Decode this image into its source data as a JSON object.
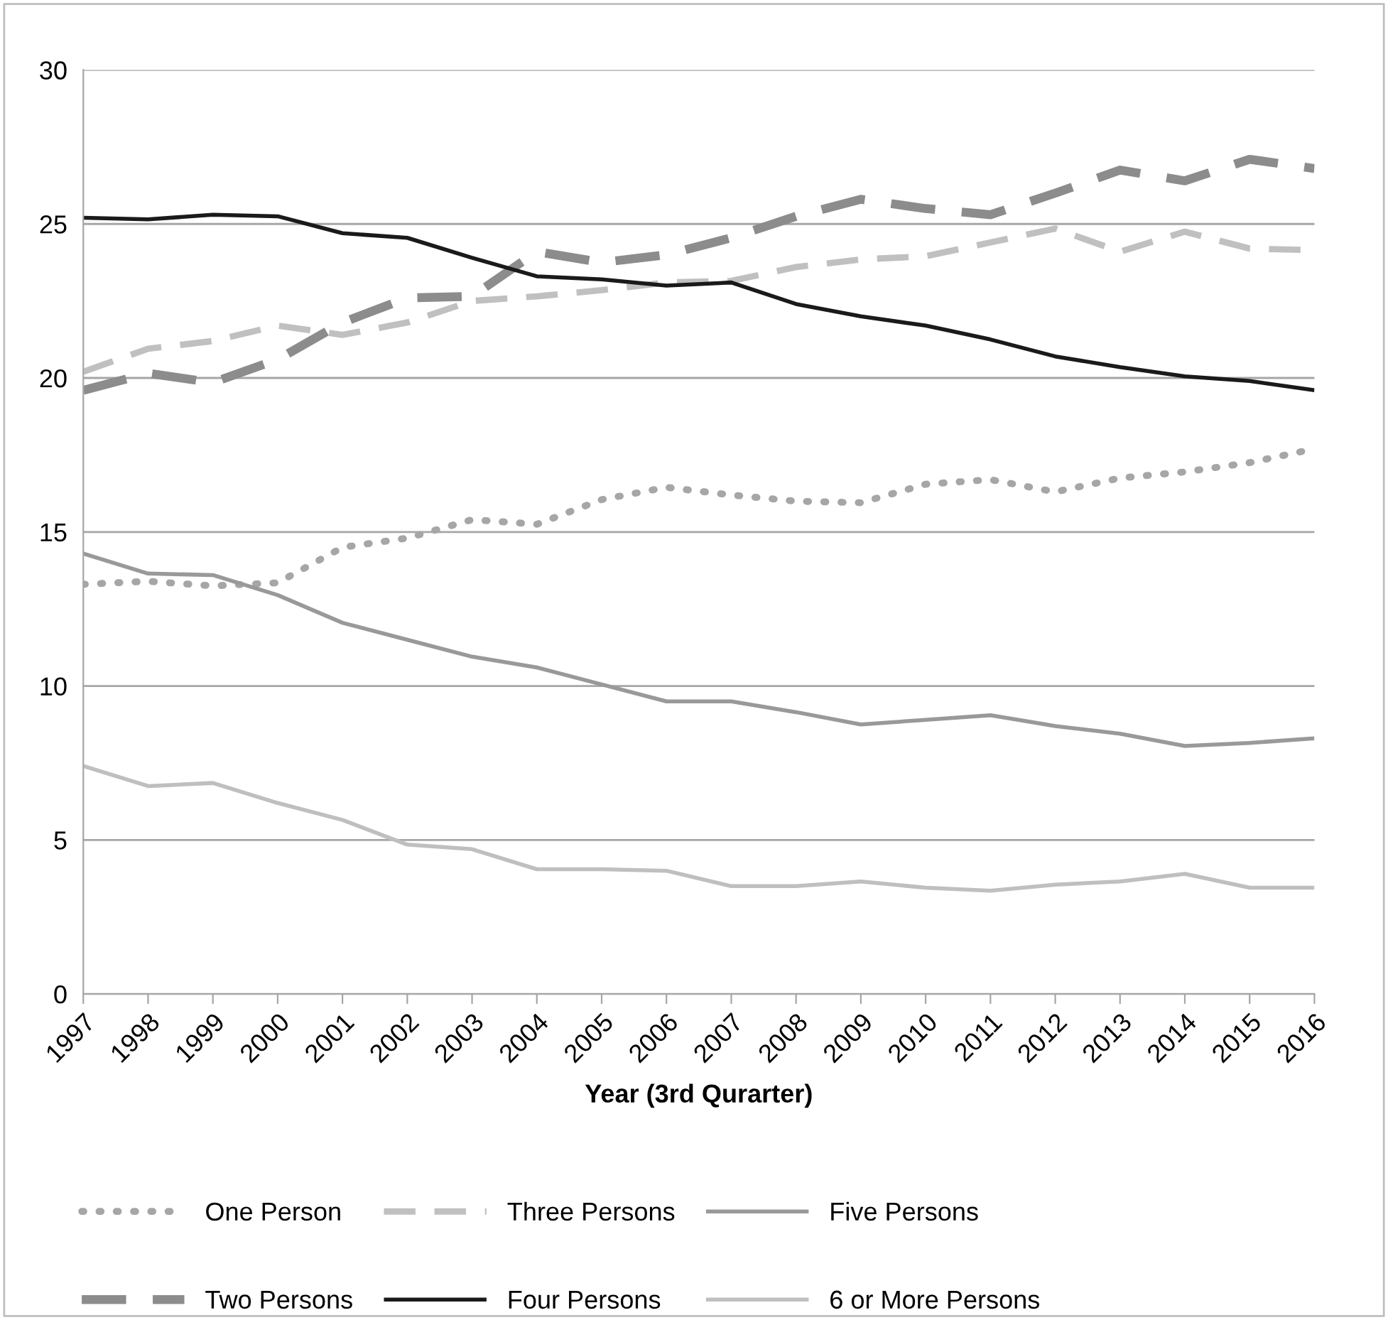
{
  "chart_data": {
    "type": "line",
    "xlabel": "Year (3rd Qurarter)",
    "categories": [
      "1997",
      "1998",
      "1999",
      "2000",
      "2001",
      "2002",
      "2003",
      "2004",
      "2005",
      "2006",
      "2007",
      "2008",
      "2009",
      "2010",
      "2011",
      "2012",
      "2013",
      "2014",
      "2015",
      "2016"
    ],
    "ylim": [
      0,
      30
    ],
    "yticks": [
      0,
      5,
      10,
      15,
      20,
      25,
      30
    ],
    "grid": "y",
    "legend": "bottom",
    "marker": "none",
    "series": [
      {
        "name": "One Person",
        "color": "#a6a6a6",
        "line_style": "dotted",
        "values": [
          13.3,
          13.4,
          13.25,
          13.35,
          14.5,
          14.8,
          15.4,
          15.25,
          16.05,
          16.45,
          16.2,
          16.0,
          15.95,
          16.55,
          16.7,
          16.3,
          16.75,
          16.95,
          17.25,
          17.7
        ]
      },
      {
        "name": "Two Persons",
        "color": "#8c8c8c",
        "line_style": "dashed",
        "values": [
          19.6,
          20.15,
          19.85,
          20.6,
          21.8,
          22.6,
          22.65,
          24.1,
          23.75,
          24.0,
          24.55,
          25.25,
          25.8,
          25.5,
          25.3,
          26.0,
          26.75,
          26.4,
          27.1,
          26.8
        ]
      },
      {
        "name": "Three Persons",
        "color": "#c0c0c0",
        "line_style": "dashed",
        "values": [
          20.2,
          20.95,
          21.2,
          21.7,
          21.4,
          21.8,
          22.5,
          22.65,
          22.85,
          23.1,
          23.15,
          23.6,
          23.85,
          23.95,
          24.4,
          24.85,
          24.1,
          24.75,
          24.2,
          24.15
        ]
      },
      {
        "name": "Four Persons",
        "color": "#1a1a1a",
        "line_style": "solid",
        "values": [
          25.2,
          25.15,
          25.3,
          25.25,
          24.7,
          24.55,
          23.9,
          23.3,
          23.2,
          23.0,
          23.1,
          22.4,
          22.0,
          21.7,
          21.25,
          20.7,
          20.35,
          20.05,
          19.9,
          19.6
        ]
      },
      {
        "name": "Five Persons",
        "color": "#999999",
        "line_style": "solid",
        "values": [
          14.3,
          13.65,
          13.6,
          12.95,
          12.05,
          11.5,
          10.95,
          10.6,
          10.05,
          9.5,
          9.5,
          9.15,
          8.75,
          8.9,
          9.05,
          8.7,
          8.45,
          8.05,
          8.15,
          8.3
        ]
      },
      {
        "name": "6 or More Persons",
        "color": "#bfbfbf",
        "line_style": "solid",
        "values": [
          7.4,
          6.75,
          6.85,
          6.2,
          5.65,
          4.85,
          4.7,
          4.05,
          4.05,
          4.0,
          3.5,
          3.5,
          3.65,
          3.45,
          3.35,
          3.55,
          3.65,
          3.9,
          3.45,
          3.45
        ]
      }
    ]
  }
}
